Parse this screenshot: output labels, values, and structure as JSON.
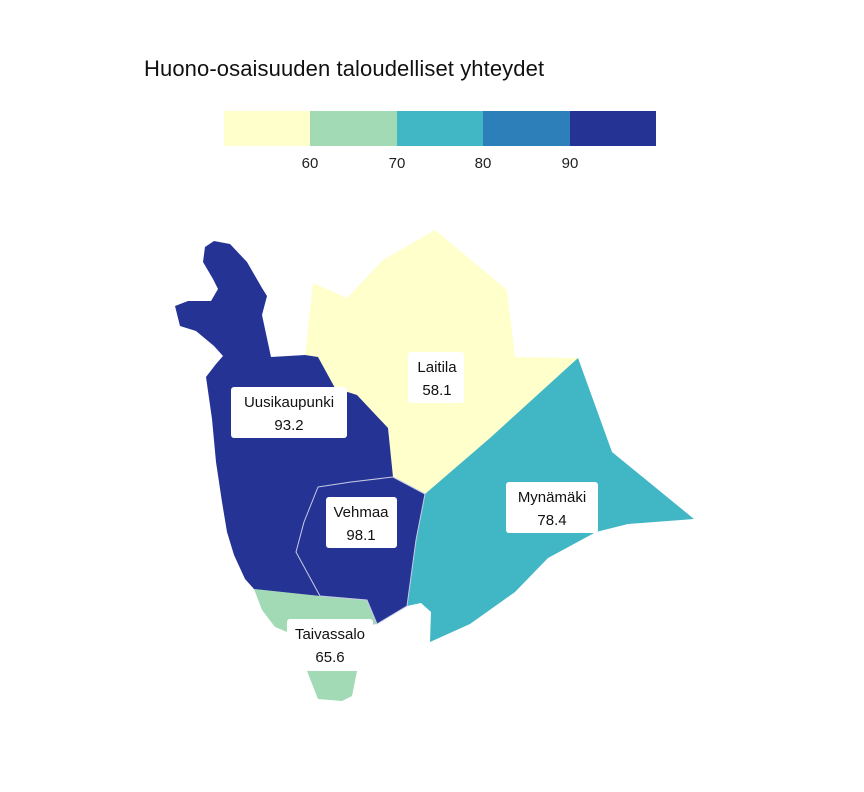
{
  "title": "Huono-osaisuuden taloudelliset yhteydet",
  "legend": {
    "colors": [
      "#ffffcc",
      "#a1dab4",
      "#41b6c4",
      "#2c7fb8",
      "#253494"
    ],
    "ticks": [
      "60",
      "70",
      "80",
      "90"
    ]
  },
  "regions": [
    {
      "name": "Uusikaupunki",
      "value": "93.2",
      "color": "#253494"
    },
    {
      "name": "Laitila",
      "value": "58.1",
      "color": "#ffffcc"
    },
    {
      "name": "Vehmaa",
      "value": "98.1",
      "color": "#253494"
    },
    {
      "name": "Mynämäki",
      "value": "78.4",
      "color": "#41b6c4"
    },
    {
      "name": "Taivassalo",
      "value": "65.6",
      "color": "#a1dab4"
    }
  ]
}
